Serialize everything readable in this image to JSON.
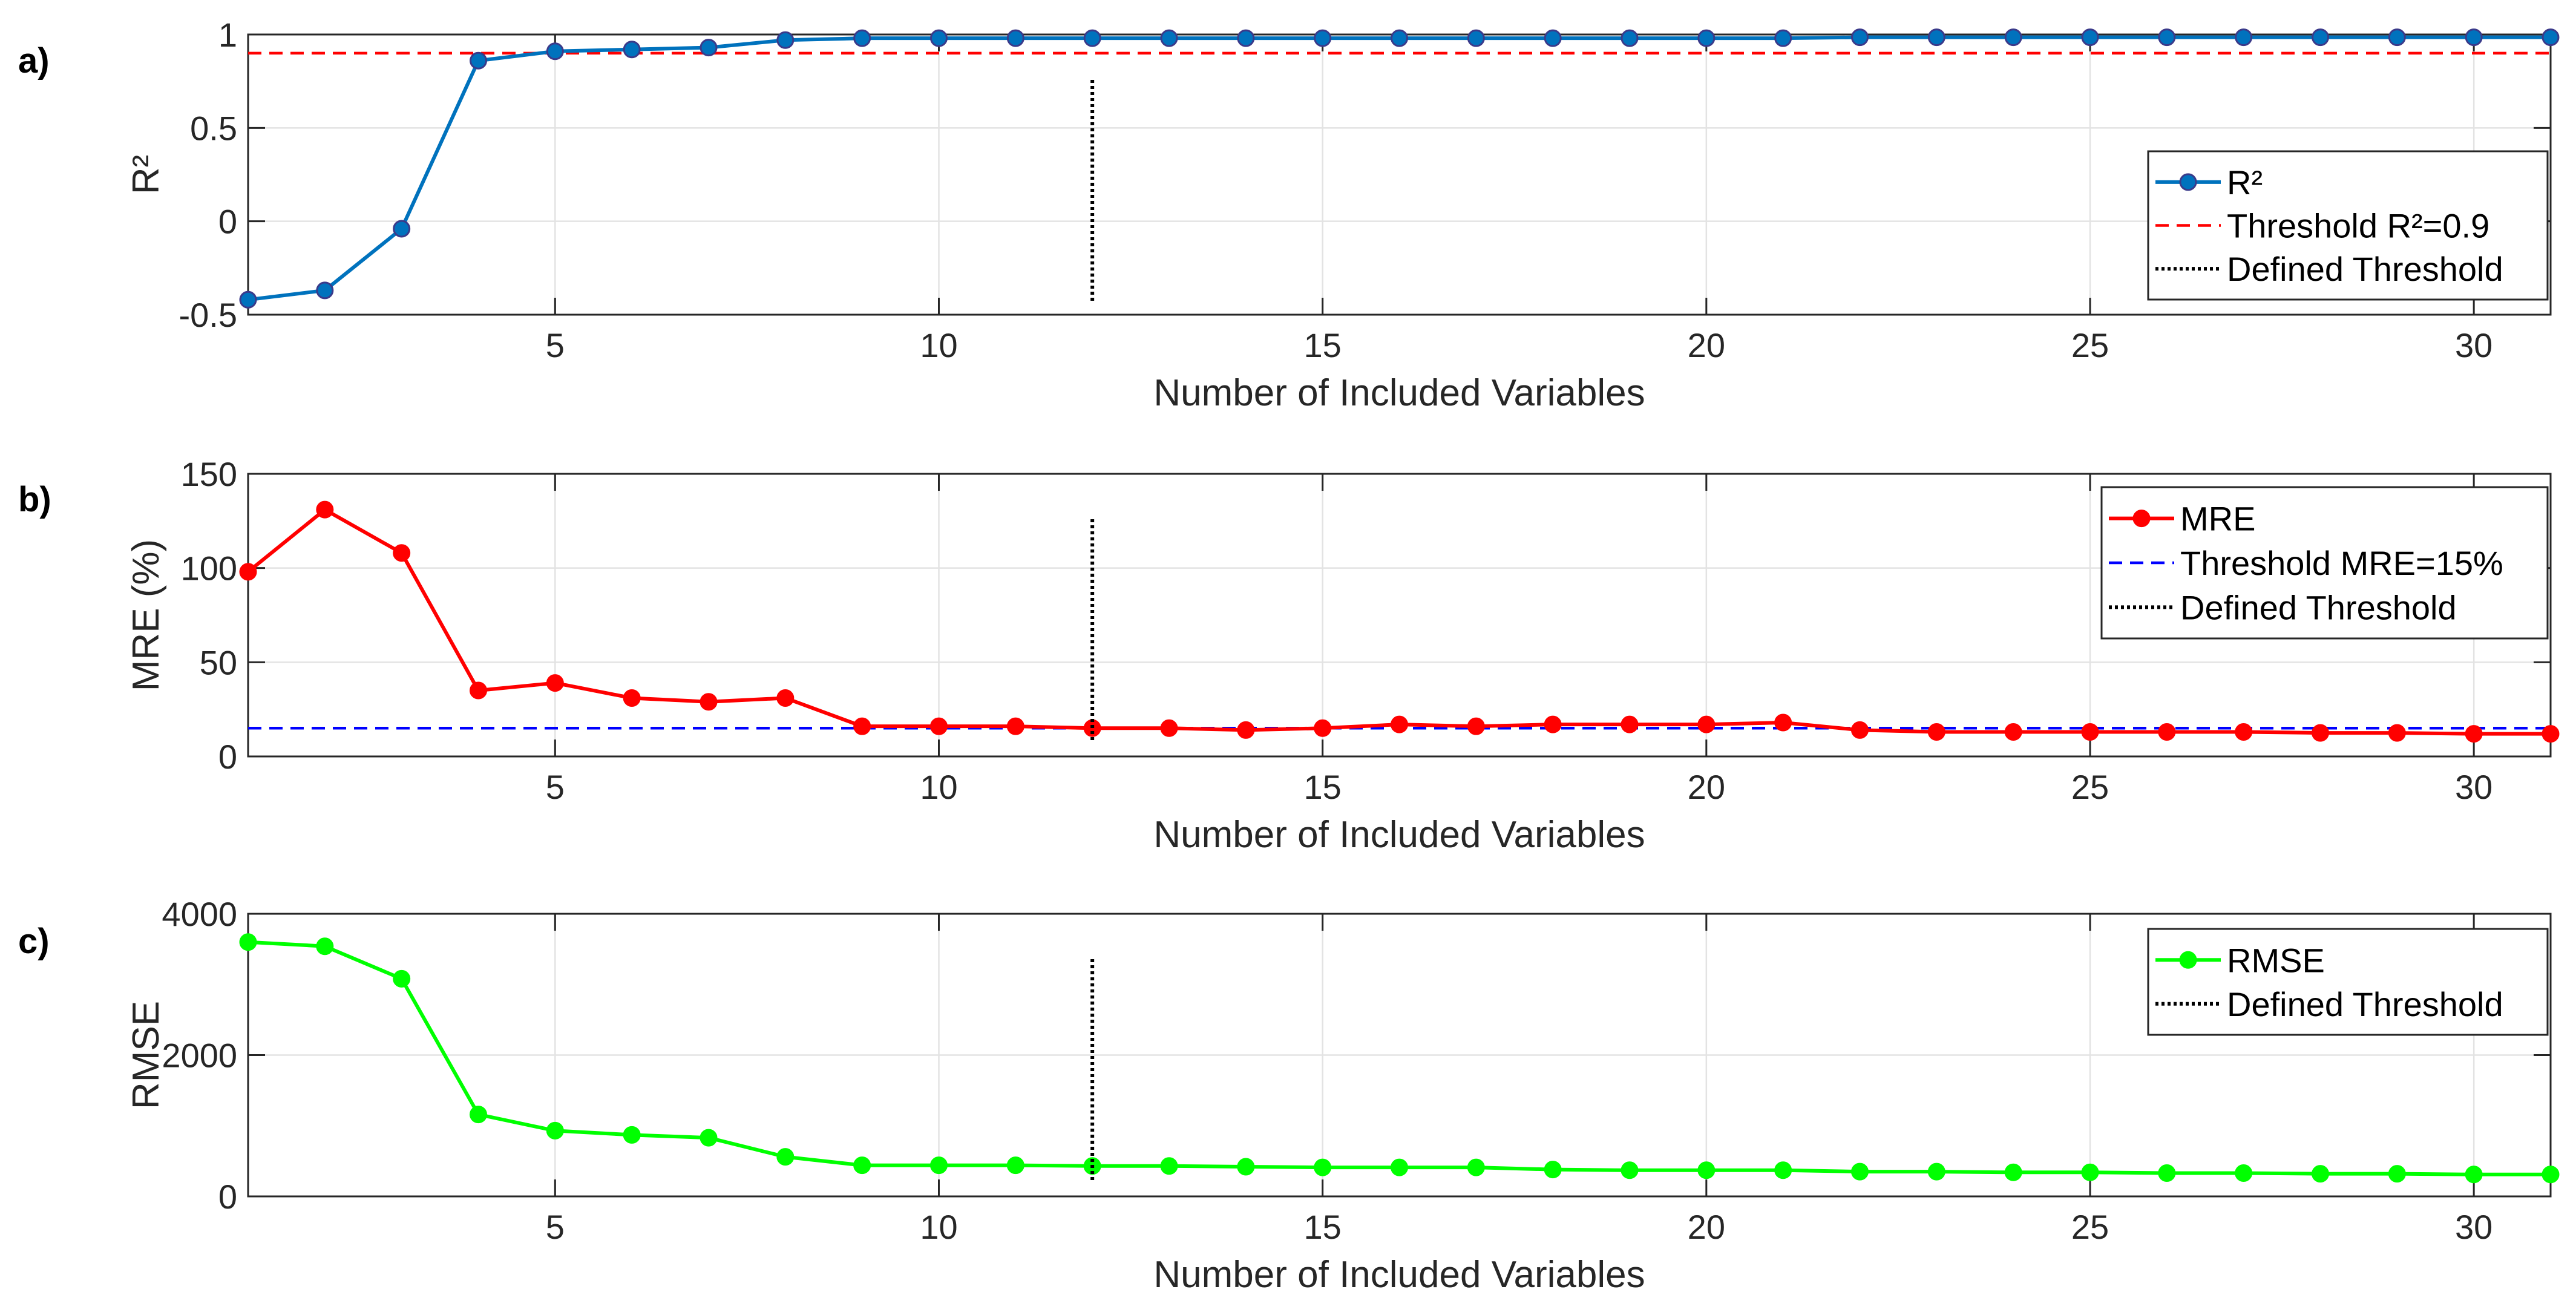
{
  "chart_data": [
    {
      "panel_label": "a)",
      "type": "line",
      "xlabel": "Number of Included Variables",
      "ylabel": "R²",
      "xlim": [
        1,
        31
      ],
      "ylim": [
        -0.5,
        1
      ],
      "xticks": [
        5,
        10,
        15,
        20,
        25,
        30
      ],
      "yticks": [
        -0.5,
        0,
        0.5,
        1
      ],
      "ytick_labels": [
        "-0.5",
        "0",
        "0.5",
        "1"
      ],
      "grid": true,
      "legend_position": "right",
      "x": [
        1,
        2,
        3,
        4,
        5,
        6,
        7,
        8,
        9,
        10,
        11,
        12,
        13,
        14,
        15,
        16,
        17,
        18,
        19,
        20,
        21,
        22,
        23,
        24,
        25,
        26,
        27,
        28,
        29,
        30,
        31
      ],
      "series": [
        {
          "name": "R²",
          "color": "#0072BD",
          "marker_face": "#0072BD",
          "values": [
            -0.42,
            -0.37,
            -0.04,
            0.86,
            0.91,
            0.92,
            0.93,
            0.97,
            0.98,
            0.98,
            0.98,
            0.98,
            0.98,
            0.98,
            0.98,
            0.98,
            0.98,
            0.98,
            0.98,
            0.98,
            0.98,
            0.985,
            0.985,
            0.985,
            0.985,
            0.985,
            0.985,
            0.985,
            0.985,
            0.985,
            0.985
          ]
        }
      ],
      "threshold": {
        "name": "Threshold R²=0.9",
        "value": 0.9,
        "color": "#FF0000"
      },
      "defined_threshold": {
        "name": "Defined Threshold",
        "x": 12,
        "color": "#000000"
      }
    },
    {
      "panel_label": "b)",
      "type": "line",
      "xlabel": "Number of Included Variables",
      "ylabel": "MRE (%)",
      "xlim": [
        1,
        31
      ],
      "ylim": [
        0,
        150
      ],
      "xticks": [
        5,
        10,
        15,
        20,
        25,
        30
      ],
      "yticks": [
        0,
        50,
        100,
        150
      ],
      "ytick_labels": [
        "0",
        "50",
        "100",
        "150"
      ],
      "grid": true,
      "legend_position": "right",
      "x": [
        1,
        2,
        3,
        4,
        5,
        6,
        7,
        8,
        9,
        10,
        11,
        12,
        13,
        14,
        15,
        16,
        17,
        18,
        19,
        20,
        21,
        22,
        23,
        24,
        25,
        26,
        27,
        28,
        29,
        30,
        31
      ],
      "series": [
        {
          "name": "MRE",
          "color": "#FF0000",
          "marker_face": "#FF0000",
          "values": [
            98,
            131,
            108,
            35,
            39,
            31,
            29,
            31,
            16,
            16,
            16,
            15,
            15,
            14,
            15,
            17,
            16,
            17,
            17,
            17,
            18,
            14,
            13,
            13,
            13,
            13,
            13,
            12.5,
            12.5,
            12,
            12
          ]
        }
      ],
      "threshold": {
        "name": "Threshold MRE=15%",
        "value": 15,
        "color": "#0000FF"
      },
      "defined_threshold": {
        "name": "Defined Threshold",
        "x": 12,
        "color": "#000000"
      }
    },
    {
      "panel_label": "c)",
      "type": "line",
      "xlabel": "Number of Included Variables",
      "ylabel": "RMSE",
      "xlim": [
        1,
        31
      ],
      "ylim": [
        0,
        4000
      ],
      "xticks": [
        5,
        10,
        15,
        20,
        25,
        30
      ],
      "yticks": [
        0,
        2000,
        4000
      ],
      "ytick_labels": [
        "0",
        "2000",
        "4000"
      ],
      "grid": true,
      "legend_position": "right",
      "x": [
        1,
        2,
        3,
        4,
        5,
        6,
        7,
        8,
        9,
        10,
        11,
        12,
        13,
        14,
        15,
        16,
        17,
        18,
        19,
        20,
        21,
        22,
        23,
        24,
        25,
        26,
        27,
        28,
        29,
        30,
        31
      ],
      "series": [
        {
          "name": "RMSE",
          "color": "#00FF00",
          "marker_face": "#00FF00",
          "values": [
            3600,
            3540,
            3080,
            1160,
            930,
            870,
            830,
            560,
            440,
            440,
            440,
            430,
            430,
            420,
            410,
            410,
            410,
            380,
            370,
            370,
            370,
            350,
            350,
            340,
            340,
            330,
            330,
            320,
            320,
            310,
            310
          ]
        }
      ],
      "defined_threshold": {
        "name": "Defined Threshold",
        "x": 12,
        "color": "#000000"
      }
    }
  ]
}
